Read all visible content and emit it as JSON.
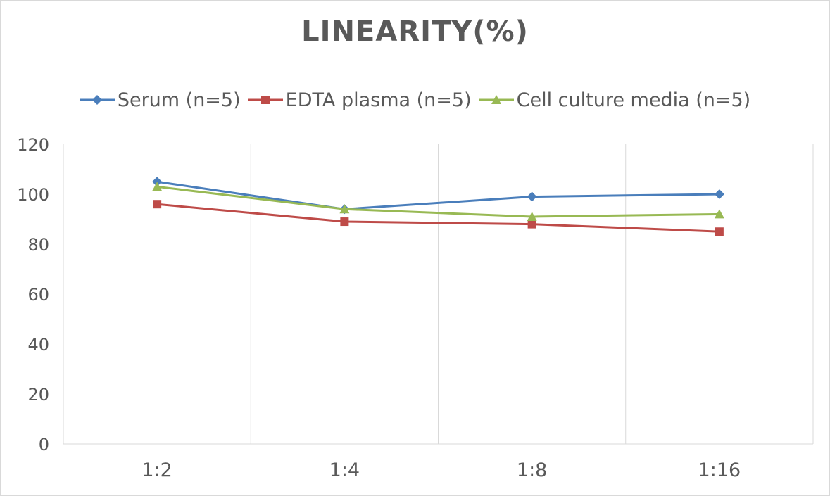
{
  "chart_data": {
    "type": "line",
    "title": "LINEARITY(%)",
    "categories": [
      "1:2",
      "1:4",
      "1:8",
      "1:16"
    ],
    "series": [
      {
        "name": "Serum (n=5)",
        "values": [
          105,
          94,
          99,
          100
        ],
        "color": "#4a7ebb",
        "marker": "diamond"
      },
      {
        "name": "EDTA plasma (n=5)",
        "values": [
          96,
          89,
          88,
          85
        ],
        "color": "#be4b48",
        "marker": "square"
      },
      {
        "name": "Cell culture media (n=5)",
        "values": [
          103,
          94,
          91,
          92
        ],
        "color": "#98b954",
        "marker": "triangle"
      }
    ],
    "ylim": [
      0,
      120
    ],
    "yticks": [
      0,
      20,
      40,
      60,
      80,
      100,
      120
    ],
    "xlabel": "",
    "ylabel": "",
    "grid": "vertical",
    "legend": "top"
  }
}
